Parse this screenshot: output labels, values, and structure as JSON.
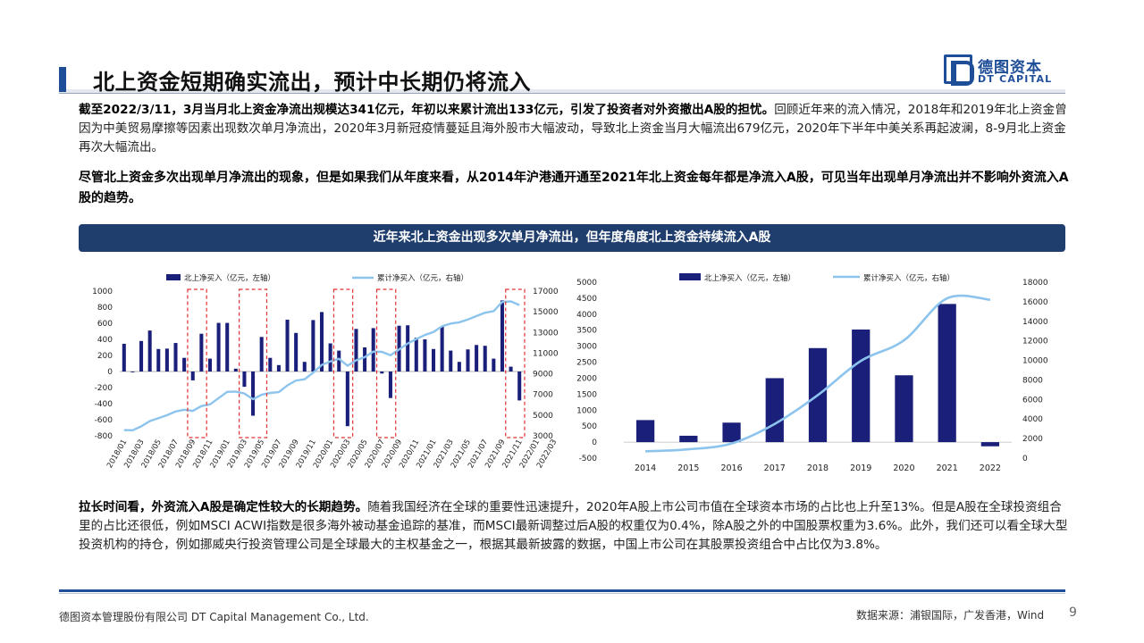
{
  "header": {
    "title": "北上资金短期确实流出，预计中长期仍将流入",
    "logo_cn": "德图资本",
    "logo_en": "DT CAPITAL"
  },
  "paragraphs": {
    "p1_bold": "截至2022/3/11，3月当月北上资金净流出规模达341亿元，年初以来累计流出133亿元，引发了投资者对外资撤出A股的担忧。",
    "p1_rest": "回顾近年来的流入情况，2018年和2019年北上资金曾因为中美贸易摩擦等因素出现数次单月净流出，2020年3月新冠疫情蔓延且海外股市大幅波动，导致北上资金当月大幅流出679亿元，2020年下半年中美关系再起波澜，8-9月北上资金再次大幅流出。",
    "p2": "尽管北上资金多次出现单月净流出的现象，但是如果我们从年度来看，从2014年沪港通开通至2021年北上资金每年都是净流入A股，可见当年出现单月净流出并不影响外资流入A股的趋势。",
    "p3_bold": "拉长时间看，外资流入A股是确定性较大的长期趋势。",
    "p3_rest": "随着我国经济在全球的重要性迅速提升，2020年A股上市公司市值在全球资本市场的占比也上升至13%。但是A股在全球投资组合里的占比还很低，例如MSCI ACWI指数是很多海外被动基金追踪的基准，而MSCI最新调整过后A股的权重仅为0.4%，除A股之外的中国股票权重为3.6%。此外，我们还可以看全球大型投资机构的持仓，例如挪威央行投资管理公司是全球最大的主权基金之一，根据其最新披露的数据，中国上市公司在其股票投资组合中占比仅为3.8%。"
  },
  "banner": "近年来北上资金出现多次单月净流出，但年度角度北上资金持续流入A股",
  "chart_data": [
    {
      "type": "bar",
      "legend": [
        "北上净买入（亿元，左轴）",
        "累计净买入（亿元，右轴）"
      ],
      "colors": {
        "bar": "#1a1f7a",
        "line": "#8cc4ee",
        "highlight": "#e03030"
      },
      "ylim_left": [
        -800,
        1000
      ],
      "yticks_left": [
        1000,
        800,
        600,
        400,
        200,
        0,
        -200,
        -400,
        -600,
        -800
      ],
      "ylim_right": [
        3000,
        17000
      ],
      "yticks_right": [
        17000,
        15000,
        13000,
        11000,
        9000,
        7000,
        5000,
        3000
      ],
      "xtick_labels": [
        "2018/01",
        "2018/03",
        "2018/05",
        "2018/07",
        "2018/09",
        "2018/11",
        "2019/01",
        "2019/03",
        "2019/05",
        "2019/07",
        "2019/09",
        "2019/11",
        "2020/01",
        "2020/03",
        "2020/05",
        "2020/07",
        "2020/09",
        "2020/11",
        "2021/01",
        "2021/03",
        "2021/05",
        "2021/07",
        "2021/09",
        "2021/11",
        "2022/01",
        "2022/03"
      ],
      "series": [
        {
          "name": "北上净买入（亿元，左轴）",
          "kind": "bar",
          "values": [
            345,
            -10,
            380,
            510,
            280,
            285,
            355,
            170,
            -110,
            470,
            160,
            605,
            605,
            35,
            -190,
            -550,
            430,
            170,
            80,
            645,
            480,
            120,
            640,
            740,
            350,
            260,
            -680,
            530,
            300,
            540,
            -25,
            -330,
            570,
            575,
            420,
            400,
            280,
            560,
            260,
            120,
            275,
            330,
            320,
            160,
            885,
            60,
            -360
          ]
        },
        {
          "name": "累计净买入（亿元，右轴）",
          "kind": "line",
          "values": [
            3550,
            3540,
            3920,
            4430,
            4710,
            4995,
            5350,
            5520,
            5410,
            5880,
            6040,
            6645,
            7250,
            7285,
            7095,
            6545,
            6975,
            7145,
            7225,
            7870,
            8350,
            8470,
            9110,
            9850,
            10200,
            10460,
            9780,
            10310,
            10610,
            11150,
            11125,
            10795,
            11365,
            11940,
            12360,
            12760,
            13040,
            13600,
            13860,
            13980,
            14255,
            14585,
            14905,
            15065,
            15950,
            16010,
            15650
          ]
        },
        {
          "name": "highlighted_periods",
          "kind": "box",
          "ranges": [
            [
              8,
              9
            ],
            [
              14,
              16
            ],
            [
              25,
              26
            ],
            [
              30,
              31
            ],
            [
              45,
              46
            ]
          ]
        }
      ]
    },
    {
      "type": "bar",
      "legend": [
        "北上净买入（亿元，左轴）",
        "累计净买入（亿元，右轴）"
      ],
      "colors": {
        "bar": "#1a1f7a",
        "line": "#8cc4ee"
      },
      "categories": [
        "2014",
        "2015",
        "2016",
        "2017",
        "2018",
        "2019",
        "2020",
        "2021",
        "2022"
      ],
      "ylim_left": [
        -500,
        5000
      ],
      "yticks_left": [
        5000,
        4500,
        4000,
        3500,
        3000,
        2500,
        2000,
        1500,
        1000,
        500,
        0,
        -500
      ],
      "ylim_right": [
        0,
        18000
      ],
      "yticks_right": [
        18000,
        16000,
        14000,
        12000,
        10000,
        8000,
        6000,
        4000,
        2000,
        0
      ],
      "series": [
        {
          "name": "北上净买入（亿元，左轴）",
          "kind": "bar",
          "values": [
            690,
            200,
            610,
            2000,
            2940,
            3520,
            2090,
            4320,
            -130
          ]
        },
        {
          "name": "累计净买入（亿元，右轴）",
          "kind": "line",
          "values": [
            700,
            900,
            1500,
            3500,
            6450,
            9950,
            12050,
            16350,
            16200
          ]
        }
      ]
    }
  ],
  "footer": {
    "company": "德图资本管理股份有限公司 DT Capital Management Co., Ltd.",
    "source": "数据来源：浦银国际，广发香港，Wind",
    "page": "9"
  }
}
